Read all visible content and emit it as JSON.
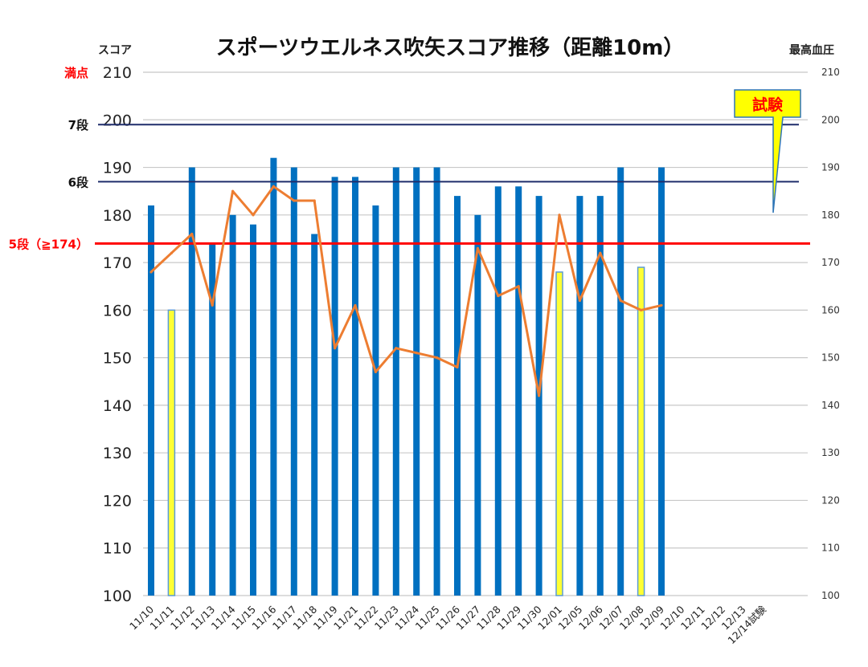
{
  "chart_data": {
    "type": "bar",
    "title": "スポーツウエルネス吹矢スコア推移（距離10m）",
    "ylabel_left": "スコア",
    "ylabel_right": "最高血圧",
    "ylim": [
      100,
      210
    ],
    "ylim_right": [
      100,
      210
    ],
    "yticks_left": [
      "100",
      "110",
      "120",
      "130",
      "140",
      "150",
      "160",
      "170",
      "180",
      "190",
      "200",
      "210"
    ],
    "yticks_right": [
      "100",
      "110",
      "120",
      "130",
      "140",
      "150",
      "160",
      "170",
      "180",
      "190",
      "200",
      "210"
    ],
    "grid": true,
    "categories": [
      "11/10",
      "11/11",
      "11/12",
      "11/13",
      "11/14",
      "11/15",
      "11/16",
      "11/17",
      "11/18",
      "11/19",
      "11/21",
      "11/22",
      "11/23",
      "11/24",
      "11/25",
      "11/26",
      "11/27",
      "11/28",
      "11/29",
      "11/30",
      "12/01",
      "12/05",
      "12/06",
      "12/07",
      "12/08",
      "12/09",
      "12/10",
      "12/11",
      "12/12",
      "12/13",
      "12/14試験"
    ],
    "series": [
      {
        "kind": "bar",
        "axis": "left",
        "values": [
          182,
          160,
          190,
          174,
          180,
          178,
          192,
          190,
          176,
          188,
          188,
          182,
          190,
          190,
          190,
          184,
          180,
          186,
          186,
          184,
          168,
          184,
          184,
          190,
          169,
          190,
          null,
          null,
          null,
          null,
          null
        ],
        "highlight": [
          false,
          true,
          false,
          false,
          false,
          false,
          false,
          false,
          false,
          false,
          false,
          false,
          false,
          false,
          false,
          false,
          false,
          false,
          false,
          false,
          true,
          false,
          false,
          false,
          true,
          false,
          false,
          false,
          false,
          false,
          false
        ]
      },
      {
        "kind": "line",
        "axis": "right",
        "values": [
          168,
          172,
          176,
          161,
          185,
          180,
          186,
          183,
          183,
          152,
          161,
          147,
          152,
          151,
          150,
          148,
          173,
          163,
          165,
          142,
          180,
          162,
          172,
          162,
          160,
          161,
          null,
          null,
          null,
          null,
          null
        ]
      }
    ],
    "reference_lines": [
      {
        "label": "満点",
        "value": 210,
        "color": "#ff0000"
      },
      {
        "label": "7段",
        "value": 199,
        "color": "#111111"
      },
      {
        "label": "6段",
        "value": 187,
        "color": "#111111"
      },
      {
        "label": "5段（≧174）",
        "value": 174,
        "color": "#ff0000"
      }
    ],
    "callout": {
      "label": "試験"
    },
    "colors": {
      "bar": "#0070c0",
      "bar_highlight": "#ffff33",
      "line": "#ed7d31",
      "ref_line_dark": "#1f2d6b",
      "ref_line_red": "#ff0000",
      "grid": "#c8c8c8"
    }
  }
}
